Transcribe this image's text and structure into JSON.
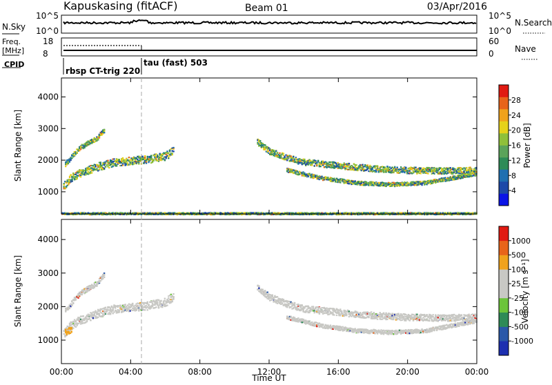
{
  "header": {
    "station": "Kapuskasing (fitACF)",
    "beam": "Beam 01",
    "date": "03/Apr/2016"
  },
  "top_panels": {
    "nsky_label": "N.Sky",
    "nsky_ticks": [
      "10^5",
      "10^0"
    ],
    "nsearch_label": "N.Search",
    "nsearch_ticks": [
      "10^5",
      "10^0"
    ],
    "freq_label_1": "Freq.",
    "freq_label_2": "[MHz]",
    "freq_ticks": [
      "18",
      "8"
    ],
    "nave_label": "Nave",
    "nave_ticks": [
      "60",
      "0"
    ],
    "cpid_label": "CPID",
    "cpid_segments": [
      {
        "label": "rbsp CT-trig 220",
        "start_h": 0.0,
        "end_h": 4.55
      },
      {
        "label": "tau (fast) 503",
        "start_h": 4.55,
        "end_h": 24.0
      }
    ]
  },
  "chart_data": [
    {
      "type": "heatmap",
      "name": "power",
      "ylabel": "Slant Range [km]",
      "yticks": [
        "4000",
        "3000",
        "2000",
        "1000"
      ],
      "ylim": [
        300,
        4600
      ],
      "xlim": [
        0,
        24
      ],
      "colorbar": {
        "label": "Power [dB]",
        "ticks": [
          "28",
          "24",
          "20",
          "16",
          "12",
          "8",
          "4"
        ],
        "colors": [
          "#0a14e6",
          "#1d49a8",
          "#1f6fb0",
          "#2e8b57",
          "#5ba35a",
          "#8fc03a",
          "#e6d21a",
          "#f0a21c",
          "#e8641a",
          "#e01a12"
        ]
      },
      "bands": [
        {
          "desc": "main echo band",
          "points": [
            [
              0.1,
              1200
            ],
            [
              0.5,
              1450
            ],
            [
              1,
              1600
            ],
            [
              2,
              1800
            ],
            [
              3,
              1950
            ],
            [
              4,
              2000
            ],
            [
              5,
              2050
            ],
            [
              6,
              2150
            ],
            [
              6.5,
              2350
            ]
          ],
          "width_km": 250,
          "color": "#2e8b57"
        },
        {
          "desc": "upper scatter",
          "points": [
            [
              0.2,
              1900
            ],
            [
              1,
              2400
            ],
            [
              2,
              2700
            ],
            [
              2.5,
              3000
            ]
          ],
          "width_km": 150,
          "color": "#1d49a8"
        },
        {
          "desc": "late band",
          "points": [
            [
              11.3,
              2600
            ],
            [
              12,
              2300
            ],
            [
              13,
              2100
            ],
            [
              14,
              1950
            ],
            [
              16,
              1850
            ],
            [
              18,
              1750
            ],
            [
              20,
              1700
            ],
            [
              22,
              1680
            ],
            [
              24,
              1700
            ]
          ],
          "width_km": 200,
          "color": "#2e8b57"
        },
        {
          "desc": "lower late band",
          "points": [
            [
              13,
              1700
            ],
            [
              15,
              1450
            ],
            [
              17,
              1300
            ],
            [
              19,
              1250
            ],
            [
              21,
              1300
            ],
            [
              23,
              1500
            ],
            [
              24,
              1600
            ]
          ],
          "width_km": 120,
          "color": "#1f6fb0"
        },
        {
          "desc": "near range",
          "points": [
            [
              0,
              330
            ],
            [
              24,
              330
            ]
          ],
          "width_km": 60,
          "color": "#1d49a8"
        }
      ]
    },
    {
      "type": "heatmap",
      "name": "velocity",
      "ylabel": "Slant Range [km]",
      "yticks": [
        "4000",
        "3000",
        "2000",
        "1000"
      ],
      "ylim": [
        300,
        4600
      ],
      "xlim": [
        0,
        24
      ],
      "xticks": [
        "00:00",
        "04:00",
        "08:00",
        "12:00",
        "16:00",
        "20:00",
        "00:00"
      ],
      "xlabel": "Time UT",
      "colorbar": {
        "label": "Velocity [m s⁻¹]",
        "ticks": [
          "1000",
          "500",
          "100",
          "25",
          "-25",
          "-100",
          "-500",
          "-1000"
        ],
        "colors": [
          "#1d2fb0",
          "#2a58a8",
          "#2e8b57",
          "#6cc43a",
          "#c8c8c4",
          "#c8c8c4",
          "#f0a21c",
          "#e8641a",
          "#e01a12"
        ]
      },
      "bands": [
        {
          "desc": "main echo band",
          "points": [
            [
              0.1,
              1200
            ],
            [
              0.5,
              1450
            ],
            [
              1,
              1600
            ],
            [
              2,
              1800
            ],
            [
              3,
              1950
            ],
            [
              4,
              2000
            ],
            [
              5,
              2050
            ],
            [
              6,
              2150
            ],
            [
              6.5,
              2350
            ]
          ],
          "width_km": 250,
          "color": "#c8c8c4"
        },
        {
          "desc": "upper scatter",
          "points": [
            [
              0.2,
              1900
            ],
            [
              1,
              2400
            ],
            [
              2,
              2700
            ],
            [
              2.5,
              3000
            ]
          ],
          "width_km": 150,
          "color": "#c8c8c4"
        },
        {
          "desc": "late band",
          "points": [
            [
              11.3,
              2600
            ],
            [
              12,
              2300
            ],
            [
              13,
              2100
            ],
            [
              14,
              1950
            ],
            [
              16,
              1850
            ],
            [
              18,
              1750
            ],
            [
              20,
              1700
            ],
            [
              22,
              1680
            ],
            [
              24,
              1700
            ]
          ],
          "width_km": 200,
          "color": "#c8c8c4"
        },
        {
          "desc": "lower late band",
          "points": [
            [
              13,
              1700
            ],
            [
              15,
              1450
            ],
            [
              17,
              1300
            ],
            [
              19,
              1250
            ],
            [
              21,
              1300
            ],
            [
              23,
              1500
            ],
            [
              24,
              1600
            ]
          ],
          "width_km": 120,
          "color": "#c8c8c4"
        },
        {
          "desc": "early ground",
          "points": [
            [
              0.2,
              1250
            ],
            [
              0.6,
              1350
            ]
          ],
          "width_km": 180,
          "color": "#f0a21c"
        }
      ]
    }
  ]
}
